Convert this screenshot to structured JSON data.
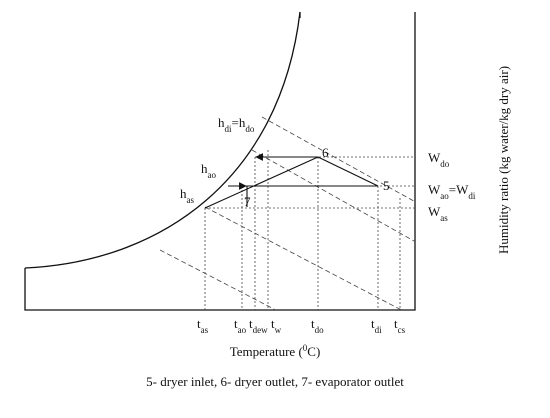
{
  "diagram": {
    "point_labels": [
      "6",
      "5",
      "7"
    ],
    "enthalpy_labels": [
      [
        {
          "text": "h"
        },
        {
          "text": "di",
          "script": "sub"
        },
        {
          "text": "=h"
        },
        {
          "text": "do",
          "script": "sub"
        }
      ],
      [
        {
          "text": "h"
        },
        {
          "text": "ao",
          "script": "sub"
        }
      ],
      [
        {
          "text": "h"
        },
        {
          "text": "as",
          "script": "sub"
        }
      ]
    ],
    "humidity_labels": [
      [
        {
          "text": "W"
        },
        {
          "text": "do",
          "script": "sub"
        }
      ],
      [
        {
          "text": "W"
        },
        {
          "text": "ao",
          "script": "sub"
        },
        {
          "text": "=W"
        },
        {
          "text": "di",
          "script": "sub"
        }
      ],
      [
        {
          "text": "W"
        },
        {
          "text": "as",
          "script": "sub"
        }
      ]
    ],
    "temperature_labels": [
      [
        {
          "text": "t"
        },
        {
          "text": "as",
          "script": "sub"
        }
      ],
      [
        {
          "text": "t"
        },
        {
          "text": "ao",
          "script": "sub"
        }
      ],
      [
        {
          "text": "t"
        },
        {
          "text": "dew",
          "script": "sub"
        }
      ],
      [
        {
          "text": "t"
        },
        {
          "text": "w",
          "script": "sub"
        }
      ],
      [
        {
          "text": "t"
        },
        {
          "text": "do",
          "script": "sub"
        }
      ],
      [
        {
          "text": "t"
        },
        {
          "text": "di",
          "script": "sub"
        }
      ],
      [
        {
          "text": "t"
        },
        {
          "text": "cs",
          "script": "sub"
        }
      ]
    ],
    "x_axis_label": [
      {
        "text": "Temperature ("
      },
      {
        "text": "0",
        "script": "super"
      },
      {
        "text": "C)"
      }
    ],
    "y_axis_label": "Humidity ratio (kg water/kg dry air)",
    "caption": "5- dryer inlet, 6- dryer outlet, 7- evaporator outlet"
  }
}
